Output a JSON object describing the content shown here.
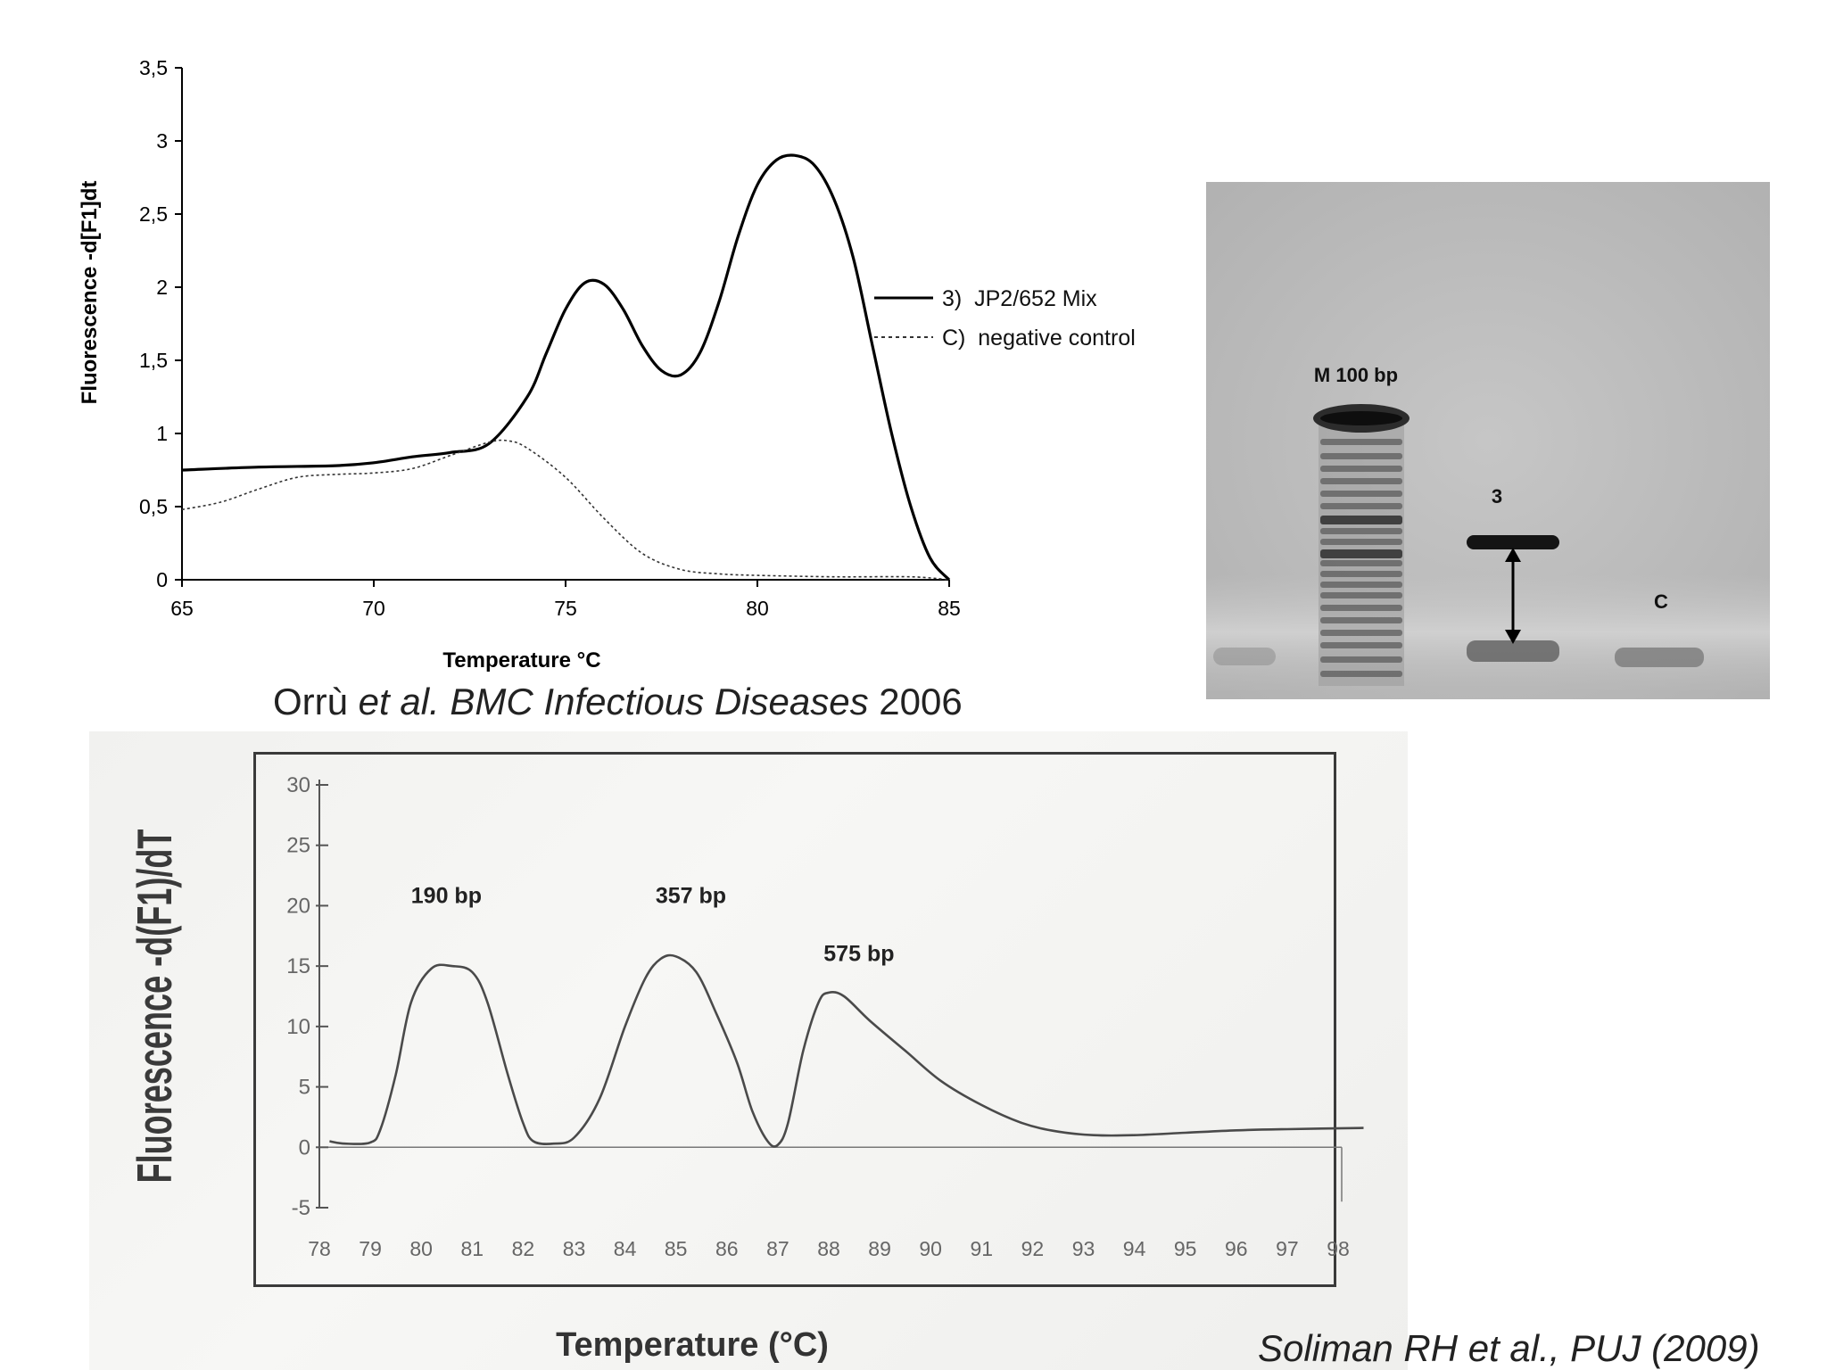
{
  "citations": {
    "top": {
      "author": "Orrù ",
      "etal": "et al. BMC Infectious Diseases",
      "year": " 2006"
    },
    "bottom": "Soliman RH et al., PUJ (2009)"
  },
  "gel": {
    "marker_label": "M 100 bp",
    "lane3_label": "3",
    "laneC_label": "C",
    "background_color": "#bdbdbd"
  },
  "chart_data": [
    {
      "type": "line",
      "title": "",
      "xlabel": "Temperature °C",
      "ylabel": "Fluorescence -d[F1]dt",
      "xlim": [
        65,
        85
      ],
      "ylim": [
        0,
        3.5
      ],
      "xticks": [
        "65",
        "70",
        "75",
        "80",
        "85"
      ],
      "yticks": [
        "0",
        "0,5",
        "1",
        "1,5",
        "2",
        "2,5",
        "3",
        "3,5"
      ],
      "legend_position": "right",
      "series": [
        {
          "name": "3)  JP2/652 Mix",
          "style": "solid",
          "color": "#000000",
          "x": [
            65,
            67,
            69,
            70,
            71,
            72,
            73,
            74,
            74.5,
            75,
            75.5,
            76,
            76.5,
            77,
            77.5,
            78,
            78.5,
            79,
            79.5,
            80,
            80.5,
            81,
            81.5,
            82,
            82.5,
            83,
            83.5,
            84,
            84.5,
            85
          ],
          "y": [
            0.75,
            0.77,
            0.78,
            0.8,
            0.84,
            0.87,
            0.93,
            1.25,
            1.55,
            1.85,
            2.03,
            2.02,
            1.85,
            1.6,
            1.43,
            1.4,
            1.55,
            1.9,
            2.35,
            2.7,
            2.87,
            2.9,
            2.83,
            2.6,
            2.2,
            1.6,
            1.0,
            0.5,
            0.15,
            0.0
          ]
        },
        {
          "name": "C)  negative control",
          "style": "dotted",
          "color": "#333333",
          "x": [
            65,
            66,
            67,
            68,
            69,
            70,
            71,
            72,
            73,
            73.5,
            74,
            75,
            76,
            77,
            78,
            79,
            80,
            82,
            84,
            85
          ],
          "y": [
            0.48,
            0.53,
            0.62,
            0.7,
            0.72,
            0.73,
            0.76,
            0.85,
            0.94,
            0.95,
            0.9,
            0.7,
            0.42,
            0.18,
            0.07,
            0.04,
            0.03,
            0.02,
            0.02,
            0.0
          ]
        }
      ]
    },
    {
      "type": "line",
      "title": "",
      "xlabel": "Temperature (°C)",
      "ylabel": "Fluorescence -d(F1)/dT",
      "xlim": [
        78,
        98
      ],
      "ylim": [
        -5,
        30
      ],
      "xticks": [
        "78",
        "79",
        "80",
        "81",
        "82",
        "83",
        "84",
        "85",
        "86",
        "87",
        "88",
        "89",
        "90",
        "91",
        "92",
        "93",
        "94",
        "95",
        "96",
        "97",
        "98"
      ],
      "yticks": [
        "-5",
        "0",
        "5",
        "10",
        "15",
        "20",
        "25",
        "30"
      ],
      "annotations": [
        {
          "text": "190  bp",
          "x": 79.8,
          "y": 20.2
        },
        {
          "text": "357  bp",
          "x": 84.6,
          "y": 20.2
        },
        {
          "text": "575  bp",
          "x": 87.9,
          "y": 15.4
        }
      ],
      "series": [
        {
          "name": "",
          "color": "#4a4a4a",
          "x": [
            78.2,
            78.5,
            79,
            79.2,
            79.5,
            79.8,
            80.2,
            80.6,
            81,
            81.3,
            81.7,
            82,
            82.2,
            82.6,
            83,
            83.5,
            84,
            84.4,
            84.7,
            85,
            85.4,
            85.8,
            86.2,
            86.5,
            86.8,
            87,
            87.2,
            87.5,
            87.8,
            88,
            88.3,
            88.8,
            89.5,
            90.2,
            91,
            91.8,
            92.5,
            93.2,
            94,
            95,
            96,
            97,
            98.5
          ],
          "y": [
            0.5,
            0.3,
            0.4,
            1.5,
            6,
            12,
            14.8,
            15,
            14.5,
            12,
            6,
            2,
            0.5,
            0.3,
            0.8,
            4,
            10,
            14,
            15.6,
            15.8,
            14.5,
            11,
            7,
            3,
            0.5,
            0.2,
            2,
            8,
            12,
            12.8,
            12.5,
            10.5,
            8,
            5.5,
            3.5,
            2,
            1.3,
            1.0,
            1.0,
            1.2,
            1.4,
            1.5,
            1.6
          ]
        }
      ]
    }
  ]
}
